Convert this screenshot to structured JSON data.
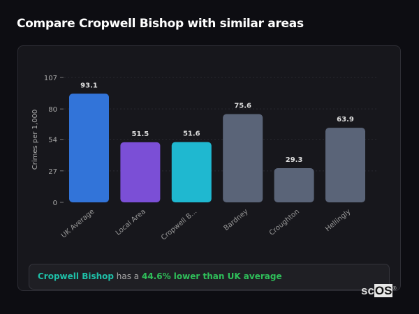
{
  "header": {
    "title": "Compare Cropwell Bishop with similar areas"
  },
  "chart_data": {
    "type": "bar",
    "categories": [
      "UK Average",
      "Local Area",
      "Cropwell B...",
      "Bardney",
      "Croughton",
      "Hellingly"
    ],
    "values": [
      93.1,
      51.5,
      51.6,
      75.6,
      29.3,
      63.9
    ],
    "value_labels": [
      "93.1",
      "51.5",
      "51.6",
      "75.6",
      "29.3",
      "63.9"
    ],
    "colors": [
      "#3274d9",
      "#7b4fd6",
      "#1fb8d0",
      "#5a6478",
      "#5a6478",
      "#5a6478"
    ],
    "ylabel": "Crimes per 1,000",
    "xlabel": "",
    "yticks": [
      0,
      27,
      54,
      80,
      107
    ],
    "ylim": [
      0,
      107
    ],
    "grid": true
  },
  "summary": {
    "place": "Cropwell Bishop",
    "middle": " has a ",
    "comparison": "44.6% lower than UK average"
  },
  "watermark": {
    "text1": "sc",
    "text2": "OS",
    "mark": "®"
  }
}
